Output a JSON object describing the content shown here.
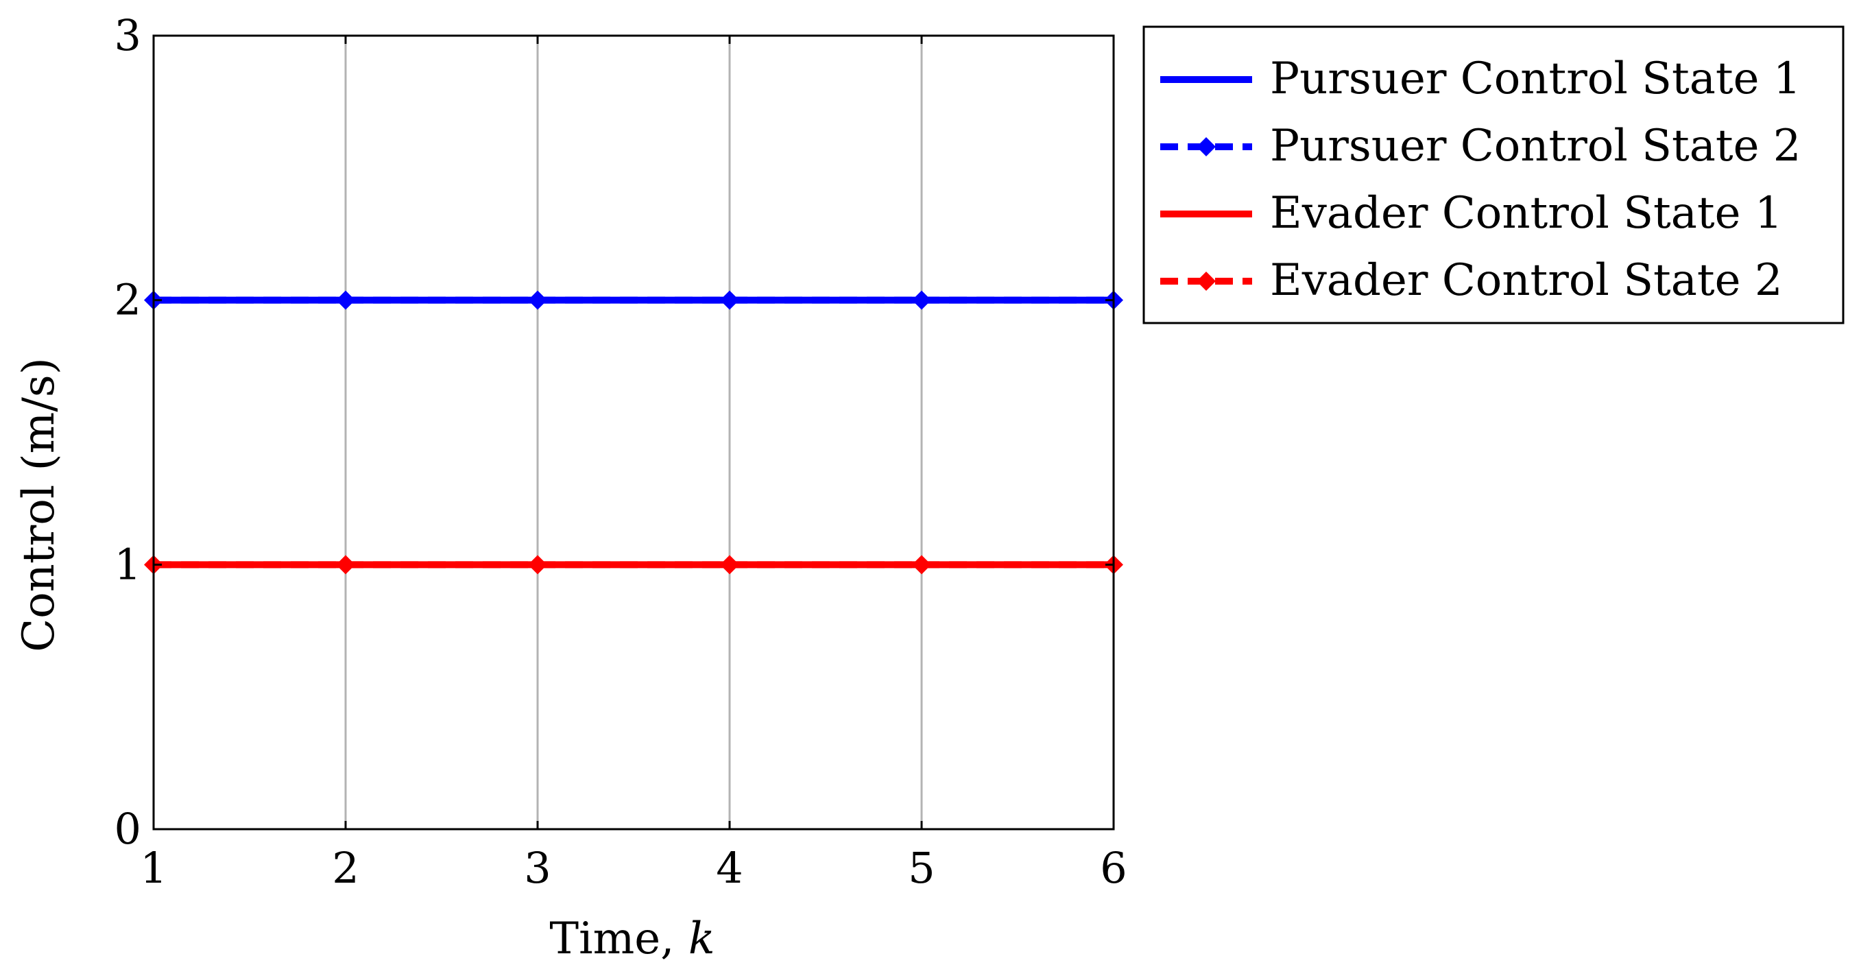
{
  "chart_data": {
    "type": "line",
    "title": "",
    "xlabel": "Time, ",
    "xlabel_var": "k",
    "ylabel": "Control (m/s)",
    "xlim": [
      1,
      6
    ],
    "ylim": [
      0,
      3
    ],
    "xticks": [
      "1",
      "2",
      "3",
      "4",
      "5",
      "6"
    ],
    "yticks": [
      "0",
      "1",
      "2",
      "3"
    ],
    "grid": "vertical",
    "legend_position": "outside-top-right",
    "x": [
      1,
      2,
      3,
      4,
      5,
      6
    ],
    "series": [
      {
        "name": "Pursuer Control State 1",
        "values": [
          2,
          2,
          2,
          2,
          2,
          2
        ],
        "color": "#0000ff",
        "style": "solid",
        "marker": false
      },
      {
        "name": "Pursuer Control State 2",
        "values": [
          2,
          2,
          2,
          2,
          2,
          2
        ],
        "color": "#0000ff",
        "style": "dashed",
        "marker": "diamond"
      },
      {
        "name": "Evader Control State 1",
        "values": [
          1,
          1,
          1,
          1,
          1,
          1
        ],
        "color": "#ff0000",
        "style": "solid",
        "marker": false
      },
      {
        "name": "Evader Control State 2",
        "values": [
          1,
          1,
          1,
          1,
          1,
          1
        ],
        "color": "#ff0000",
        "style": "dashed",
        "marker": "diamond"
      }
    ]
  }
}
